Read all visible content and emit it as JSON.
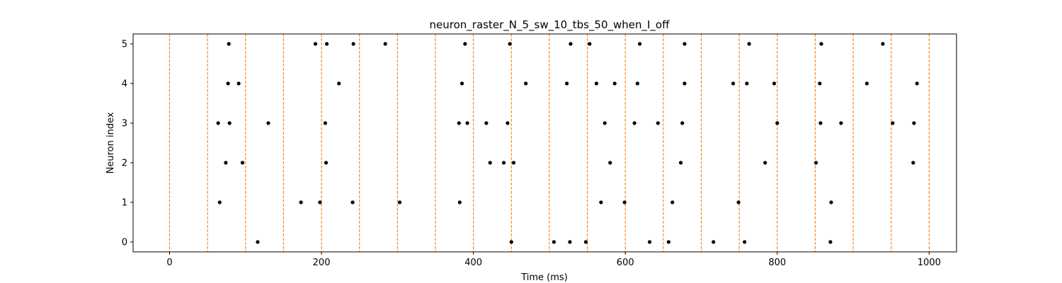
{
  "chart_data": {
    "type": "scatter",
    "title": "neuron_raster_N_5_sw_10_tbs_50_when_I_off",
    "xlabel": "Time (ms)",
    "ylabel": "Neuron index",
    "xlim": [
      -48,
      1036
    ],
    "ylim": [
      -0.25,
      5.25
    ],
    "xticks": [
      0,
      200,
      400,
      600,
      800,
      1000
    ],
    "yticks": [
      0,
      1,
      2,
      3,
      4,
      5
    ],
    "grid": false,
    "colors": {
      "spikes": "#000000",
      "bin_lines": "#ff7f0e"
    },
    "vertical_lines": {
      "style": "dashed",
      "x": [
        0,
        50,
        100,
        150,
        200,
        250,
        300,
        350,
        400,
        450,
        500,
        550,
        600,
        650,
        700,
        750,
        800,
        850,
        900,
        950,
        1000
      ]
    },
    "series": [
      {
        "neuron": 0,
        "spike_times": [
          116,
          450,
          506,
          527,
          548,
          632,
          657,
          716,
          757,
          870
        ]
      },
      {
        "neuron": 1,
        "spike_times": [
          66,
          173,
          198,
          241,
          303,
          382,
          568,
          599,
          662,
          749,
          871
        ]
      },
      {
        "neuron": 2,
        "spike_times": [
          74,
          96,
          206,
          422,
          440,
          453,
          580,
          673,
          784,
          851,
          979
        ]
      },
      {
        "neuron": 3,
        "spike_times": [
          64,
          79,
          130,
          205,
          381,
          392,
          417,
          445,
          573,
          612,
          643,
          675,
          800,
          857,
          884,
          952,
          980
        ]
      },
      {
        "neuron": 4,
        "spike_times": [
          77,
          91,
          223,
          385,
          469,
          523,
          562,
          586,
          616,
          678,
          742,
          760,
          796,
          856,
          918,
          984
        ]
      },
      {
        "neuron": 5,
        "spike_times": [
          78,
          192,
          207,
          242,
          284,
          389,
          448,
          528,
          553,
          619,
          678,
          763,
          858,
          939
        ]
      }
    ]
  }
}
